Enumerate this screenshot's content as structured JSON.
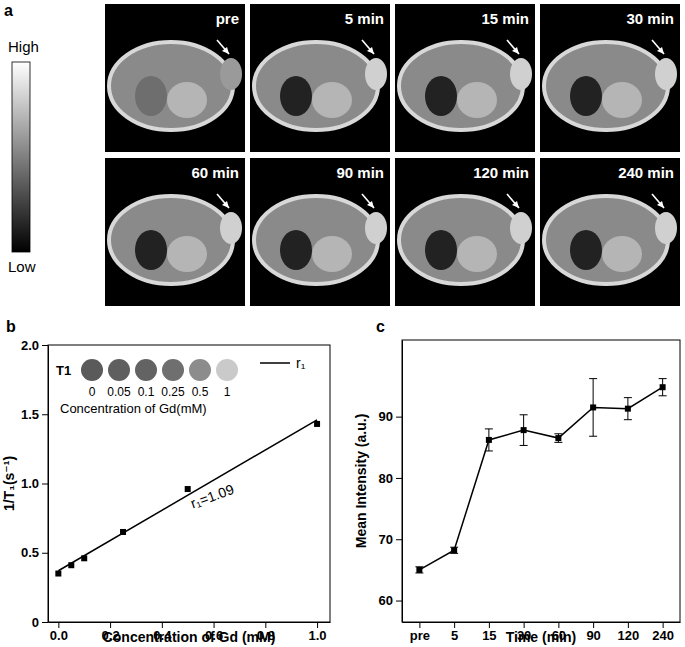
{
  "chart_data": [
    {
      "type": "image_grid",
      "panel_label": "a",
      "colorbar": {
        "high": "High",
        "low": "Low"
      },
      "images": [
        "pre",
        "5 min",
        "15 min",
        "30 min",
        "60 min",
        "90 min",
        "120 min",
        "240 min"
      ]
    },
    {
      "type": "scatter",
      "panel_label": "b",
      "x_label": "Concentration of Gd (mM)",
      "y_label": "1/T₁(s⁻¹)",
      "xlim": [
        -0.04,
        1.05
      ],
      "xticks": [
        {
          "value": 0,
          "label": "0.0"
        },
        0.2,
        0.4,
        0.6,
        0.8,
        {
          "value": 1,
          "label": "1.0"
        }
      ],
      "ylim": [
        0,
        2
      ],
      "yticks": [
        0,
        0.5,
        {
          "value": 1,
          "label": "1.0"
        },
        1.5,
        {
          "value": 2,
          "label": "2.0"
        }
      ],
      "annotation": "r₁=1.09",
      "legend": "top-right",
      "series": [
        {
          "name": "r₁",
          "type": "line",
          "color": "#000000",
          "x": [
            0,
            1
          ],
          "values": [
            0.37,
            1.46
          ]
        },
        {
          "type": "scatter",
          "marker": "square",
          "color": "#000000",
          "x": [
            0,
            0.05,
            0.1,
            0.25,
            0.5,
            1
          ],
          "values": [
            0.35,
            0.41,
            0.46,
            0.65,
            0.96,
            1.43
          ]
        }
      ],
      "inset": {
        "label": "T1",
        "concentrations": [
          0,
          0.05,
          0.1,
          0.25,
          0.5,
          1
        ],
        "colors": [
          "#5a5a5a",
          "#5f5f5f",
          "#636363",
          "#6f6f6f",
          "#8c8c8c",
          "#cacaca"
        ],
        "caption": "Concentration of Gd(mM)"
      }
    },
    {
      "type": "line",
      "panel_label": "c",
      "x_label": "Time (min)",
      "y_label": "Mean Intensity (a.u.)",
      "categories": [
        "pre",
        "5",
        "15",
        "30",
        "60",
        "90",
        "120",
        "240"
      ],
      "ylim": [
        56.5,
        102.5
      ],
      "yticks": [
        60,
        70,
        80,
        90
      ],
      "series": [
        {
          "color": "#000000",
          "marker": "square",
          "values": [
            65.0,
            68.2,
            86.2,
            87.8,
            86.5,
            91.5,
            91.3,
            94.8
          ],
          "errors": [
            0.5,
            0.5,
            1.8,
            2.5,
            0.7,
            4.7,
            1.8,
            1.4
          ]
        }
      ]
    }
  ]
}
